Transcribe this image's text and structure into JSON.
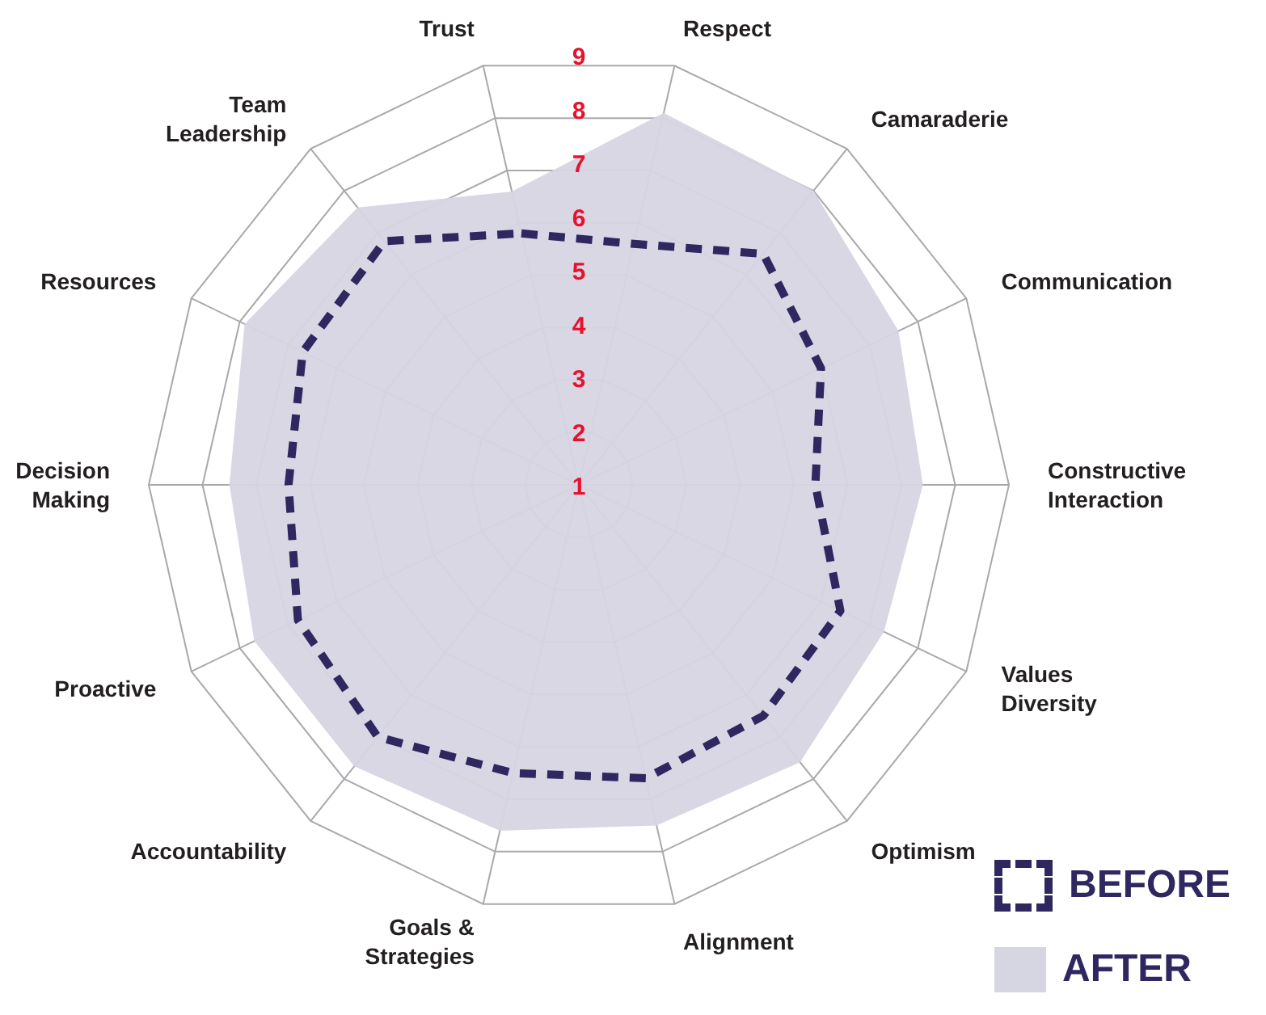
{
  "chart_data": {
    "type": "radar",
    "categories": [
      "Trust",
      "Respect",
      "Camaraderie",
      "Communication",
      "Constructive Interaction",
      "Values Diversity",
      "Optimism",
      "Alignment",
      "Goals & Strategies",
      "Accountability",
      "Proactive",
      "Decision Making",
      "Resources",
      "Team Leadership"
    ],
    "series": [
      {
        "name": "AFTER",
        "color": "#d6d5e2",
        "values": [
          6.6,
          8.1,
          8.0,
          7.6,
          7.4,
          7.3,
          7.6,
          7.5,
          7.6,
          7.7,
          7.7,
          7.5,
          7.9,
          7.6
        ]
      },
      {
        "name": "BEFORE",
        "line_style": "dashed",
        "color": "#2e2760",
        "values": [
          5.8,
          5.6,
          6.5,
          6.0,
          5.4,
          6.4,
          6.5,
          6.6,
          6.5,
          7.0,
          6.8,
          6.4,
          6.7,
          6.8
        ]
      }
    ],
    "ylim": [
      1,
      9
    ],
    "yticks": [
      1,
      2,
      3,
      4,
      5,
      6,
      7,
      8,
      9
    ],
    "grid": true,
    "legend": "bottom right"
  }
}
